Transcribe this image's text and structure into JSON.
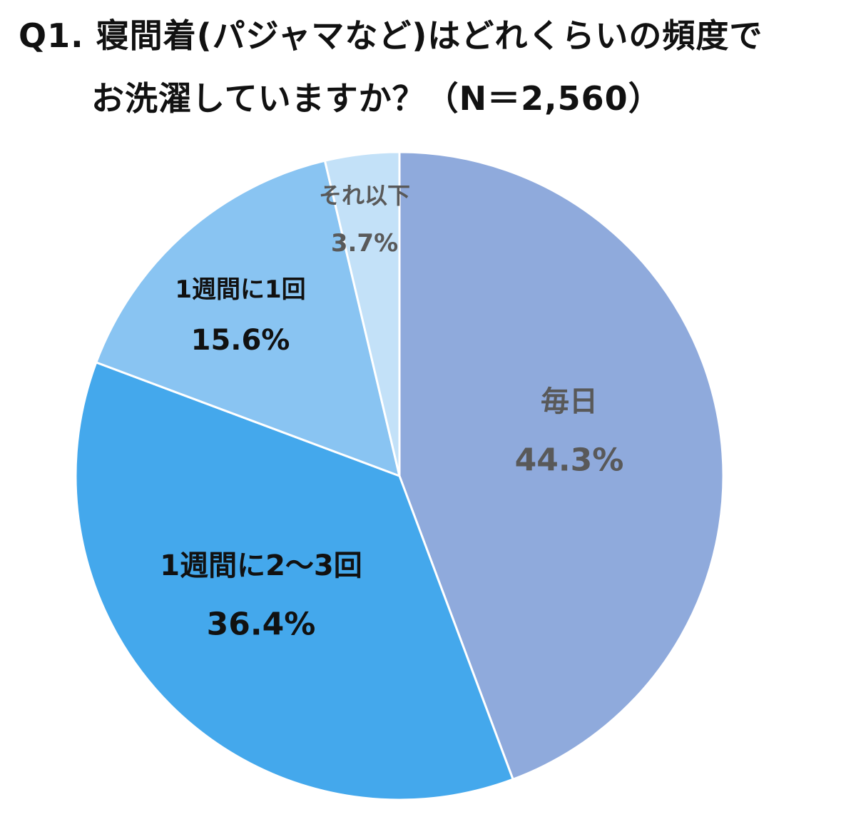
{
  "title": {
    "line1": "Q1.  寝間着(パジャマなど)はどれくらいの頻度で",
    "line2": "お洗濯していますか？（N＝2,560）"
  },
  "chart_data": {
    "type": "pie",
    "start_angle_deg": 0,
    "direction": "clockwise",
    "slices": [
      {
        "label": "毎日",
        "value": 44.3,
        "value_label": "44.3%",
        "color": "#8faadc",
        "text_color": "#595959"
      },
      {
        "label": "1週間に2〜3回",
        "value": 36.4,
        "value_label": "36.4%",
        "color": "#44a8ec",
        "text_color": "#111111"
      },
      {
        "label": "1週間に1回",
        "value": 15.6,
        "value_label": "15.6%",
        "color": "#89c4f2",
        "text_color": "#111111"
      },
      {
        "label": "それ以下",
        "value": 3.7,
        "value_label": "3.7%",
        "color": "#c3e1f8",
        "text_color": "#595959"
      }
    ]
  }
}
